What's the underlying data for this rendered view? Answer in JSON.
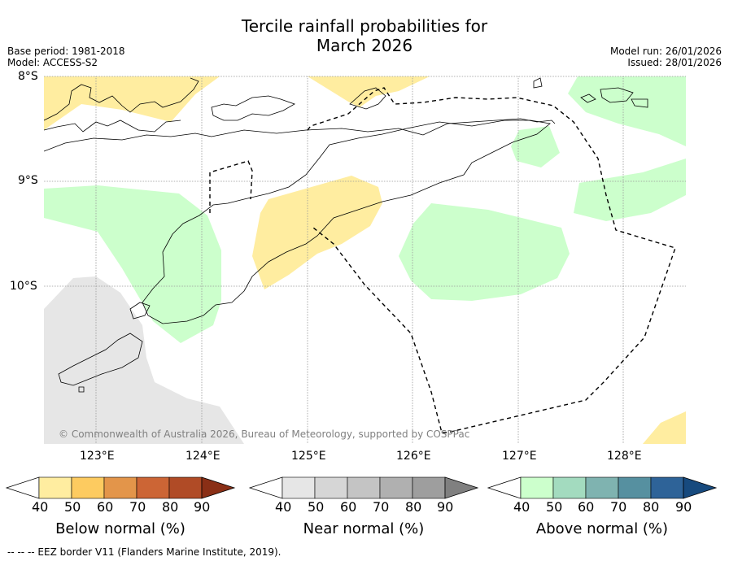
{
  "header": {
    "title_line1": "Tercile rainfall probabilities for",
    "title_line2": "March 2026",
    "base_period": "Base period: 1981-2018",
    "model": "Model: ACCESS-S2",
    "model_run": "Model run: 26/01/2026",
    "issued": "Issued: 28/01/2026"
  },
  "map": {
    "lat_labels": [
      "8°S",
      "9°S",
      "10°S"
    ],
    "lon_labels": [
      "123°E",
      "124°E",
      "125°E",
      "126°E",
      "127°E",
      "128°E"
    ],
    "copyright": "© Commonwealth of Australia 2026, Bureau of Meteorology, supported by COSPPac",
    "colors": {
      "below_normal": "#ffeda0",
      "above_normal": "#ccffcc",
      "near_normal": "#e6e6e6",
      "grid": "#999999",
      "coast": "#000000"
    }
  },
  "colorbars": [
    {
      "title": "Below normal (%)",
      "ticks": [
        "40",
        "50",
        "60",
        "70",
        "80",
        "90"
      ],
      "colors": [
        "#ffffff",
        "#ffeda0",
        "#fdcb60",
        "#e3954a",
        "#cc6535",
        "#b04b26",
        "#8a2f16"
      ]
    },
    {
      "title": "Near normal (%)",
      "ticks": [
        "40",
        "50",
        "60",
        "70",
        "80",
        "90"
      ],
      "colors": [
        "#ffffff",
        "#e6e6e6",
        "#d6d6d6",
        "#c4c4c4",
        "#b0b0b0",
        "#9e9e9e",
        "#808080"
      ]
    },
    {
      "title": "Above normal (%)",
      "ticks": [
        "40",
        "50",
        "60",
        "70",
        "80",
        "90"
      ],
      "colors": [
        "#ffffff",
        "#ccffcc",
        "#a3dbbf",
        "#7fb3b0",
        "#5690a0",
        "#2e6398",
        "#174a7e"
      ]
    }
  ],
  "legend": {
    "eez_border": "--  --  -- EEZ border V11 (Flanders Marine Institute, 2019)."
  }
}
